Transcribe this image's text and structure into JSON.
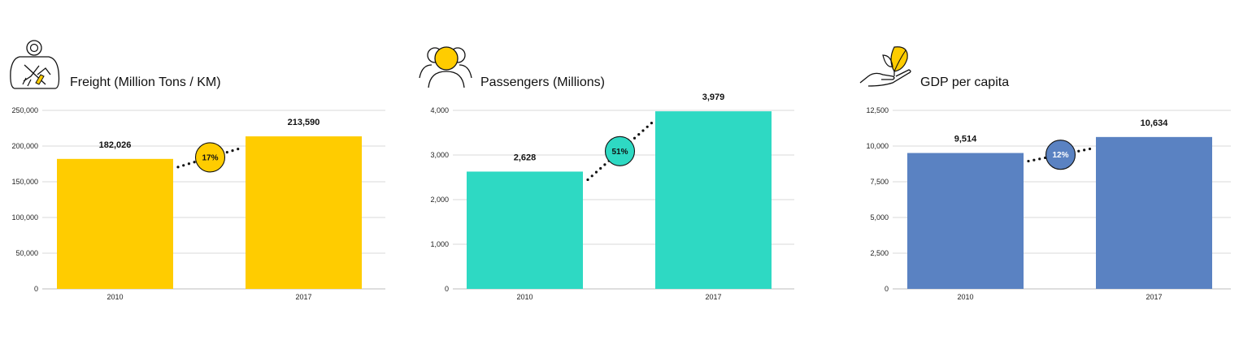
{
  "chart_data": [
    {
      "type": "bar",
      "title": "Freight (Million Tons / KM)",
      "icon": "airplane-bag-icon",
      "categories": [
        "2010",
        "2017"
      ],
      "values": [
        182026,
        213590
      ],
      "value_labels": [
        "182,026",
        "213,590"
      ],
      "change_label": "17%",
      "ylim": [
        0,
        250000
      ],
      "yticks": [
        0,
        50000,
        100000,
        150000,
        200000,
        250000
      ],
      "ytick_labels": [
        "0",
        "50,000",
        "100,000",
        "150,000",
        "200,000",
        "250,000"
      ],
      "grid": true,
      "color": "#FFCC00",
      "badge_text_color": "#111111"
    },
    {
      "type": "bar",
      "title": "Passengers (Millions)",
      "icon": "people-group-icon",
      "categories": [
        "2010",
        "2017"
      ],
      "values": [
        2628,
        3979
      ],
      "value_labels": [
        "2,628",
        "3,979"
      ],
      "change_label": "51%",
      "ylim": [
        0,
        4000
      ],
      "yticks": [
        0,
        1000,
        2000,
        3000,
        4000
      ],
      "ytick_labels": [
        "0",
        "1,000",
        "2,000",
        "3,000",
        "4,000"
      ],
      "grid": true,
      "color": "#2ED9C3",
      "badge_text_color": "#111111"
    },
    {
      "type": "bar",
      "title": "GDP per capita",
      "icon": "hand-leaf-icon",
      "categories": [
        "2010",
        "2017"
      ],
      "values": [
        9514,
        10634
      ],
      "value_labels": [
        "9,514",
        "10,634"
      ],
      "change_label": "12%",
      "ylim": [
        0,
        12500
      ],
      "yticks": [
        0,
        2500,
        5000,
        7500,
        10000,
        12500
      ],
      "ytick_labels": [
        "0",
        "2,500",
        "5,000",
        "7,500",
        "10,000",
        "12,500"
      ],
      "grid": true,
      "color": "#5A82C2",
      "badge_text_color": "#ffffff"
    }
  ]
}
